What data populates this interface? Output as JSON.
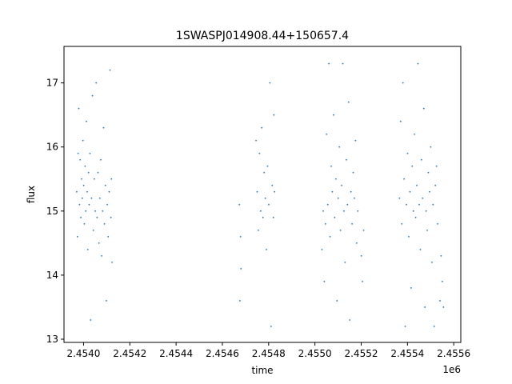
{
  "chart_data": {
    "type": "scatter",
    "title": "1SWASPJ014908.44+150657.4",
    "xlabel": "time",
    "ylabel": "flux",
    "x_offset_label": "1e6",
    "xlim": [
      2453915,
      2455630
    ],
    "ylim": [
      12.95,
      17.57
    ],
    "x_ticks": [
      2453999.5,
      2454199.5,
      2454399.5,
      2454599.5,
      2454799.5,
      2454999.5,
      2455199.5,
      2455399.5,
      2455599.5
    ],
    "x_tick_labels": [
      "2.4540",
      "2.4542",
      "2.4544",
      "2.4546",
      "2.4548",
      "2.4550",
      "2.4552",
      "2.4554",
      "2.4556"
    ],
    "y_ticks": [
      13,
      14,
      15,
      16,
      17
    ],
    "y_tick_labels": [
      "13",
      "14",
      "15",
      "16",
      "17"
    ],
    "grid": false,
    "legend": "none",
    "marker_color": "#1f77b4",
    "series": [
      {
        "points": [
          [
            2453970,
            15.3
          ],
          [
            2453973,
            14.6
          ],
          [
            2453976,
            15.9
          ],
          [
            2453979,
            16.6
          ],
          [
            2453982,
            15.1
          ],
          [
            2453985,
            15.8
          ],
          [
            2453988,
            14.9
          ],
          [
            2453991,
            15.5
          ],
          [
            2453994,
            15.2
          ],
          [
            2453997,
            16.1
          ],
          [
            2454000,
            15.4
          ],
          [
            2454003,
            14.8
          ],
          [
            2454006,
            15.7
          ],
          [
            2454009,
            15.0
          ],
          [
            2454012,
            16.4
          ],
          [
            2454015,
            15.3
          ],
          [
            2454018,
            14.4
          ],
          [
            2454021,
            15.6
          ],
          [
            2454024,
            15.1
          ],
          [
            2454027,
            15.9
          ],
          [
            2454030,
            13.3
          ],
          [
            2454034,
            15.2
          ],
          [
            2454038,
            16.8
          ],
          [
            2454042,
            14.7
          ],
          [
            2454046,
            15.5
          ],
          [
            2454050,
            15.0
          ],
          [
            2454054,
            17.0
          ],
          [
            2454058,
            14.9
          ],
          [
            2454062,
            15.6
          ],
          [
            2454066,
            14.5
          ],
          [
            2454070,
            15.2
          ],
          [
            2454074,
            15.8
          ],
          [
            2454078,
            14.3
          ],
          [
            2454082,
            15.0
          ],
          [
            2454086,
            16.3
          ],
          [
            2454090,
            14.8
          ],
          [
            2454094,
            15.4
          ],
          [
            2454098,
            13.6
          ],
          [
            2454102,
            15.1
          ],
          [
            2454106,
            14.6
          ],
          [
            2454110,
            15.3
          ],
          [
            2454114,
            17.2
          ],
          [
            2454118,
            14.9
          ],
          [
            2454120,
            15.5
          ],
          [
            2454123,
            14.2
          ],
          [
            2454673,
            15.1
          ],
          [
            2454675,
            13.6
          ],
          [
            2454678,
            14.6
          ],
          [
            2454680,
            14.1
          ],
          [
            2454745,
            16.1
          ],
          [
            2454750,
            15.3
          ],
          [
            2454755,
            14.7
          ],
          [
            2454760,
            15.9
          ],
          [
            2454765,
            15.0
          ],
          [
            2454770,
            16.3
          ],
          [
            2454775,
            14.9
          ],
          [
            2454780,
            15.6
          ],
          [
            2454785,
            15.2
          ],
          [
            2454790,
            14.4
          ],
          [
            2454795,
            15.7
          ],
          [
            2454800,
            15.1
          ],
          [
            2454805,
            17.0
          ],
          [
            2454810,
            13.2
          ],
          [
            2454815,
            15.4
          ],
          [
            2454820,
            14.9
          ],
          [
            2454822,
            16.5
          ],
          [
            2454825,
            15.3
          ],
          [
            2455030,
            14.4
          ],
          [
            2455035,
            15.0
          ],
          [
            2455040,
            13.9
          ],
          [
            2455045,
            14.8
          ],
          [
            2455050,
            16.2
          ],
          [
            2455055,
            15.1
          ],
          [
            2455060,
            17.3
          ],
          [
            2455065,
            14.6
          ],
          [
            2455070,
            15.7
          ],
          [
            2455075,
            15.3
          ],
          [
            2455080,
            16.5
          ],
          [
            2455085,
            14.9
          ],
          [
            2455090,
            15.5
          ],
          [
            2455095,
            13.6
          ],
          [
            2455100,
            15.2
          ],
          [
            2455105,
            16.0
          ],
          [
            2455110,
            14.7
          ],
          [
            2455115,
            15.4
          ],
          [
            2455120,
            17.3
          ],
          [
            2455125,
            15.0
          ],
          [
            2455130,
            14.2
          ],
          [
            2455135,
            15.8
          ],
          [
            2455140,
            15.1
          ],
          [
            2455145,
            16.7
          ],
          [
            2455150,
            13.3
          ],
          [
            2455155,
            15.3
          ],
          [
            2455160,
            14.8
          ],
          [
            2455165,
            15.6
          ],
          [
            2455170,
            15.2
          ],
          [
            2455175,
            16.1
          ],
          [
            2455180,
            14.5
          ],
          [
            2455185,
            15.0
          ],
          [
            2455200,
            14.3
          ],
          [
            2455205,
            13.9
          ],
          [
            2455210,
            14.7
          ],
          [
            2455365,
            15.2
          ],
          [
            2455370,
            16.4
          ],
          [
            2455375,
            14.8
          ],
          [
            2455380,
            17.0
          ],
          [
            2455385,
            15.5
          ],
          [
            2455390,
            13.2
          ],
          [
            2455395,
            15.1
          ],
          [
            2455400,
            15.9
          ],
          [
            2455405,
            14.6
          ],
          [
            2455410,
            15.3
          ],
          [
            2455415,
            13.8
          ],
          [
            2455420,
            15.7
          ],
          [
            2455425,
            15.0
          ],
          [
            2455430,
            16.2
          ],
          [
            2455435,
            14.9
          ],
          [
            2455440,
            15.4
          ],
          [
            2455445,
            17.3
          ],
          [
            2455450,
            15.1
          ],
          [
            2455455,
            14.4
          ],
          [
            2455460,
            15.8
          ],
          [
            2455465,
            15.2
          ],
          [
            2455470,
            16.6
          ],
          [
            2455475,
            13.5
          ],
          [
            2455480,
            15.0
          ],
          [
            2455485,
            14.7
          ],
          [
            2455490,
            15.6
          ],
          [
            2455495,
            15.3
          ],
          [
            2455500,
            16.0
          ],
          [
            2455505,
            14.2
          ],
          [
            2455510,
            15.1
          ],
          [
            2455515,
            13.2
          ],
          [
            2455520,
            15.4
          ],
          [
            2455525,
            15.7
          ],
          [
            2455530,
            14.8
          ],
          [
            2455540,
            13.6
          ],
          [
            2455545,
            14.3
          ],
          [
            2455550,
            13.9
          ],
          [
            2455555,
            13.5
          ]
        ]
      }
    ]
  }
}
